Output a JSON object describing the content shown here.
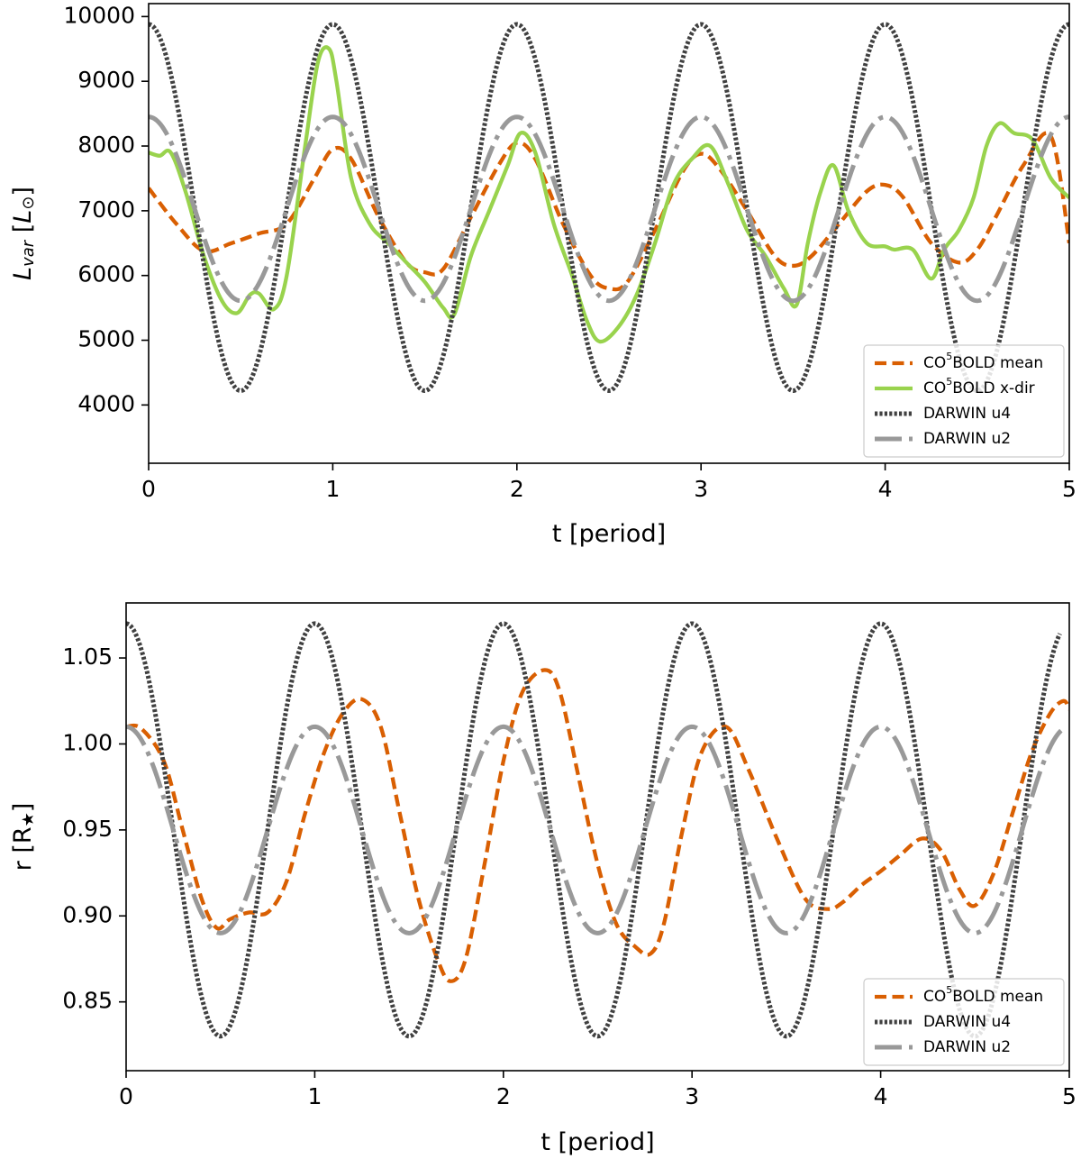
{
  "chart_data": [
    {
      "type": "line",
      "panel": "top",
      "xlabel": "t [period]",
      "ylabel": "L_var [L_☉]",
      "ylabel_main": "L",
      "ylabel_sub": "var",
      "ylabel_unit_open": " [",
      "ylabel_unit": "L",
      "ylabel_unit_sub": "⊙",
      "ylabel_unit_close": "]",
      "xlim": [
        0,
        5
      ],
      "ylim": [
        3100,
        10200
      ],
      "xticks": [
        0,
        1,
        2,
        3,
        4,
        5
      ],
      "yticks": [
        4000,
        5000,
        6000,
        7000,
        8000,
        9000,
        10000
      ],
      "grid": false,
      "legend_position": "lower-right",
      "series": [
        {
          "name": "CO5BOLD mean",
          "label_main": "CO",
          "label_sup": "5",
          "label_rest": "BOLD mean",
          "color": "#d95f02",
          "style": "dashed",
          "x": [
            0,
            0.15,
            0.3,
            0.45,
            0.6,
            0.75,
            0.9,
            1.0,
            1.1,
            1.25,
            1.4,
            1.5,
            1.6,
            1.75,
            1.9,
            2.0,
            2.1,
            2.25,
            2.4,
            2.5,
            2.6,
            2.75,
            2.9,
            3.0,
            3.1,
            3.25,
            3.4,
            3.5,
            3.6,
            3.75,
            3.9,
            4.0,
            4.1,
            4.25,
            4.4,
            4.5,
            4.6,
            4.75,
            4.9,
            5.0
          ],
          "y": [
            7350,
            6800,
            6380,
            6500,
            6650,
            6800,
            7500,
            7950,
            7800,
            6900,
            6200,
            6050,
            6100,
            6900,
            7700,
            8050,
            7800,
            6800,
            6000,
            5800,
            5900,
            6700,
            7600,
            7880,
            7650,
            7000,
            6300,
            6150,
            6300,
            6800,
            7300,
            7400,
            7200,
            6500,
            6200,
            6400,
            6900,
            7700,
            8150,
            6500
          ]
        },
        {
          "name": "CO5BOLD x-dir",
          "label_main": "CO",
          "label_sup": "5",
          "label_rest": "BOLD x-dir",
          "color": "#99d34d",
          "style": "solid",
          "x": [
            0,
            0.06,
            0.12,
            0.2,
            0.3,
            0.4,
            0.48,
            0.55,
            0.6,
            0.68,
            0.75,
            0.85,
            0.92,
            0.98,
            1.02,
            1.1,
            1.2,
            1.3,
            1.4,
            1.5,
            1.6,
            1.66,
            1.75,
            1.85,
            1.95,
            2.02,
            2.1,
            2.2,
            2.3,
            2.38,
            2.45,
            2.55,
            2.65,
            2.75,
            2.85,
            2.95,
            3.05,
            3.15,
            3.25,
            3.35,
            3.45,
            3.52,
            3.58,
            3.65,
            3.72,
            3.8,
            3.9,
            4.0,
            4.05,
            4.15,
            4.25,
            4.32,
            4.4,
            4.48,
            4.55,
            4.62,
            4.7,
            4.8,
            4.9,
            5.0
          ],
          "y": [
            7900,
            7850,
            7900,
            7300,
            6300,
            5600,
            5420,
            5700,
            5720,
            5480,
            6000,
            8000,
            9300,
            9500,
            9000,
            7500,
            6800,
            6500,
            6200,
            5900,
            5500,
            5400,
            6300,
            7000,
            7700,
            8200,
            7900,
            6800,
            6000,
            5300,
            4980,
            5200,
            5700,
            6500,
            7400,
            7800,
            8000,
            7400,
            6700,
            6300,
            5800,
            5550,
            6500,
            7300,
            7700,
            7000,
            6500,
            6450,
            6400,
            6400,
            5950,
            6400,
            6700,
            7200,
            8000,
            8350,
            8200,
            8100,
            7500,
            7200
          ]
        },
        {
          "name": "DARWIN u4",
          "label": "DARWIN u4",
          "color": "#404040",
          "style": "dotted",
          "model": {
            "kind": "cosine",
            "mean": 7050,
            "amplitude": 2830,
            "period": 1.0,
            "x_start": 0,
            "x_end": 5
          }
        },
        {
          "name": "DARWIN u2",
          "label": "DARWIN u2",
          "color": "#999999",
          "style": "dashdot",
          "model": {
            "kind": "cosine",
            "mean": 7030,
            "amplitude": 1420,
            "period": 1.0,
            "x_start": 0,
            "x_end": 5
          }
        }
      ]
    },
    {
      "type": "line",
      "panel": "bottom",
      "xlabel": "t [period]",
      "ylabel": "r [R★]",
      "ylabel_main": "r [R",
      "ylabel_sub": "★",
      "ylabel_unit_close": "]",
      "xlim": [
        0,
        5
      ],
      "ylim": [
        0.81,
        1.082
      ],
      "xticks": [
        0,
        1,
        2,
        3,
        4,
        5
      ],
      "yticks": [
        0.85,
        0.9,
        0.95,
        1.0,
        1.05
      ],
      "ytick_labels": [
        "0.85",
        "0.90",
        "0.95",
        "1.00",
        "1.05"
      ],
      "grid": false,
      "legend_position": "lower-right",
      "series": [
        {
          "name": "CO5BOLD mean",
          "label_main": "CO",
          "label_sup": "5",
          "label_rest": "BOLD mean",
          "color": "#d95f02",
          "style": "dashed",
          "x": [
            0,
            0.08,
            0.2,
            0.3,
            0.4,
            0.48,
            0.55,
            0.65,
            0.75,
            0.85,
            0.95,
            1.05,
            1.15,
            1.25,
            1.35,
            1.45,
            1.55,
            1.65,
            1.72,
            1.8,
            1.9,
            2.0,
            2.1,
            2.22,
            2.3,
            2.4,
            2.5,
            2.6,
            2.7,
            2.78,
            2.85,
            2.95,
            3.05,
            3.18,
            3.3,
            3.45,
            3.6,
            3.72,
            3.8,
            3.9,
            4.0,
            4.1,
            4.22,
            4.32,
            4.42,
            4.5,
            4.6,
            4.7,
            4.8,
            4.9,
            4.97,
            5.0
          ],
          "y": [
            1.01,
            1.009,
            0.99,
            0.95,
            0.91,
            0.893,
            0.898,
            0.902,
            0.902,
            0.92,
            0.96,
            0.995,
            1.018,
            1.026,
            1.01,
            0.96,
            0.91,
            0.875,
            0.862,
            0.875,
            0.93,
            0.99,
            1.03,
            1.043,
            1.03,
            0.98,
            0.93,
            0.895,
            0.882,
            0.878,
            0.895,
            0.95,
            0.995,
            1.01,
            0.985,
            0.945,
            0.91,
            0.904,
            0.908,
            0.918,
            0.926,
            0.935,
            0.945,
            0.938,
            0.915,
            0.906,
            0.925,
            0.96,
            0.995,
            1.018,
            1.025,
            1.02
          ]
        },
        {
          "name": "DARWIN u4",
          "label": "DARWIN u4",
          "color": "#404040",
          "style": "dotted",
          "model": {
            "kind": "cosine",
            "mean": 0.95,
            "amplitude": 0.12,
            "period": 1.0,
            "x_start": 0,
            "x_end": 4.95
          }
        },
        {
          "name": "DARWIN u2",
          "label": "DARWIN u2",
          "color": "#999999",
          "style": "dashdot",
          "model": {
            "kind": "cosine",
            "mean": 0.95,
            "amplitude": 0.06,
            "period": 1.0,
            "x_start": 0,
            "x_end": 4.97
          }
        }
      ]
    }
  ]
}
